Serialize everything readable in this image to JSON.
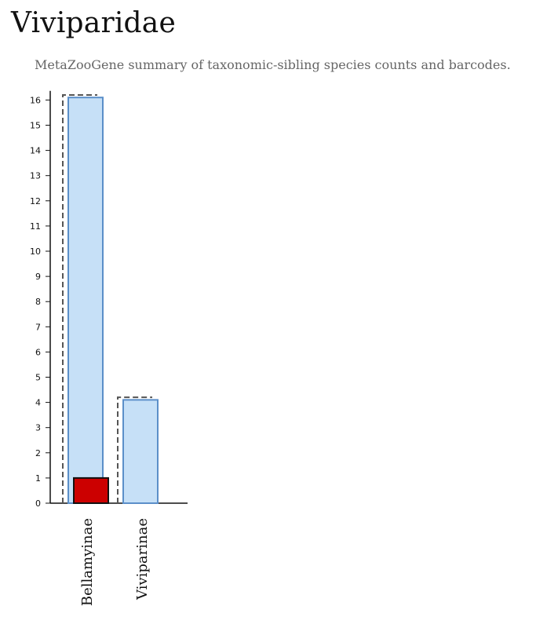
{
  "page": {
    "title": "Viviparidae",
    "subtitle": "MetaZooGene summary of taxonomic-sibling species counts and barcodes."
  },
  "chart_data": {
    "type": "bar",
    "categories": [
      "Bellamyinae",
      "Viviparinae"
    ],
    "series": [
      {
        "values": [
          16.2,
          4.2
        ],
        "color": "#555555",
        "style": "dashed-outline"
      },
      {
        "values": [
          16.1,
          4.1
        ],
        "color": "#c6e0f7",
        "stroke": "#5b8fc9"
      },
      {
        "values": [
          1,
          0
        ],
        "color": "#cc0000",
        "stroke": "#111111"
      }
    ],
    "yticks": [
      0,
      1,
      2,
      3,
      4,
      5,
      6,
      7,
      8,
      9,
      10,
      11,
      12,
      13,
      14,
      15,
      16
    ],
    "ylim": [
      0,
      16.3
    ],
    "grid": false
  }
}
